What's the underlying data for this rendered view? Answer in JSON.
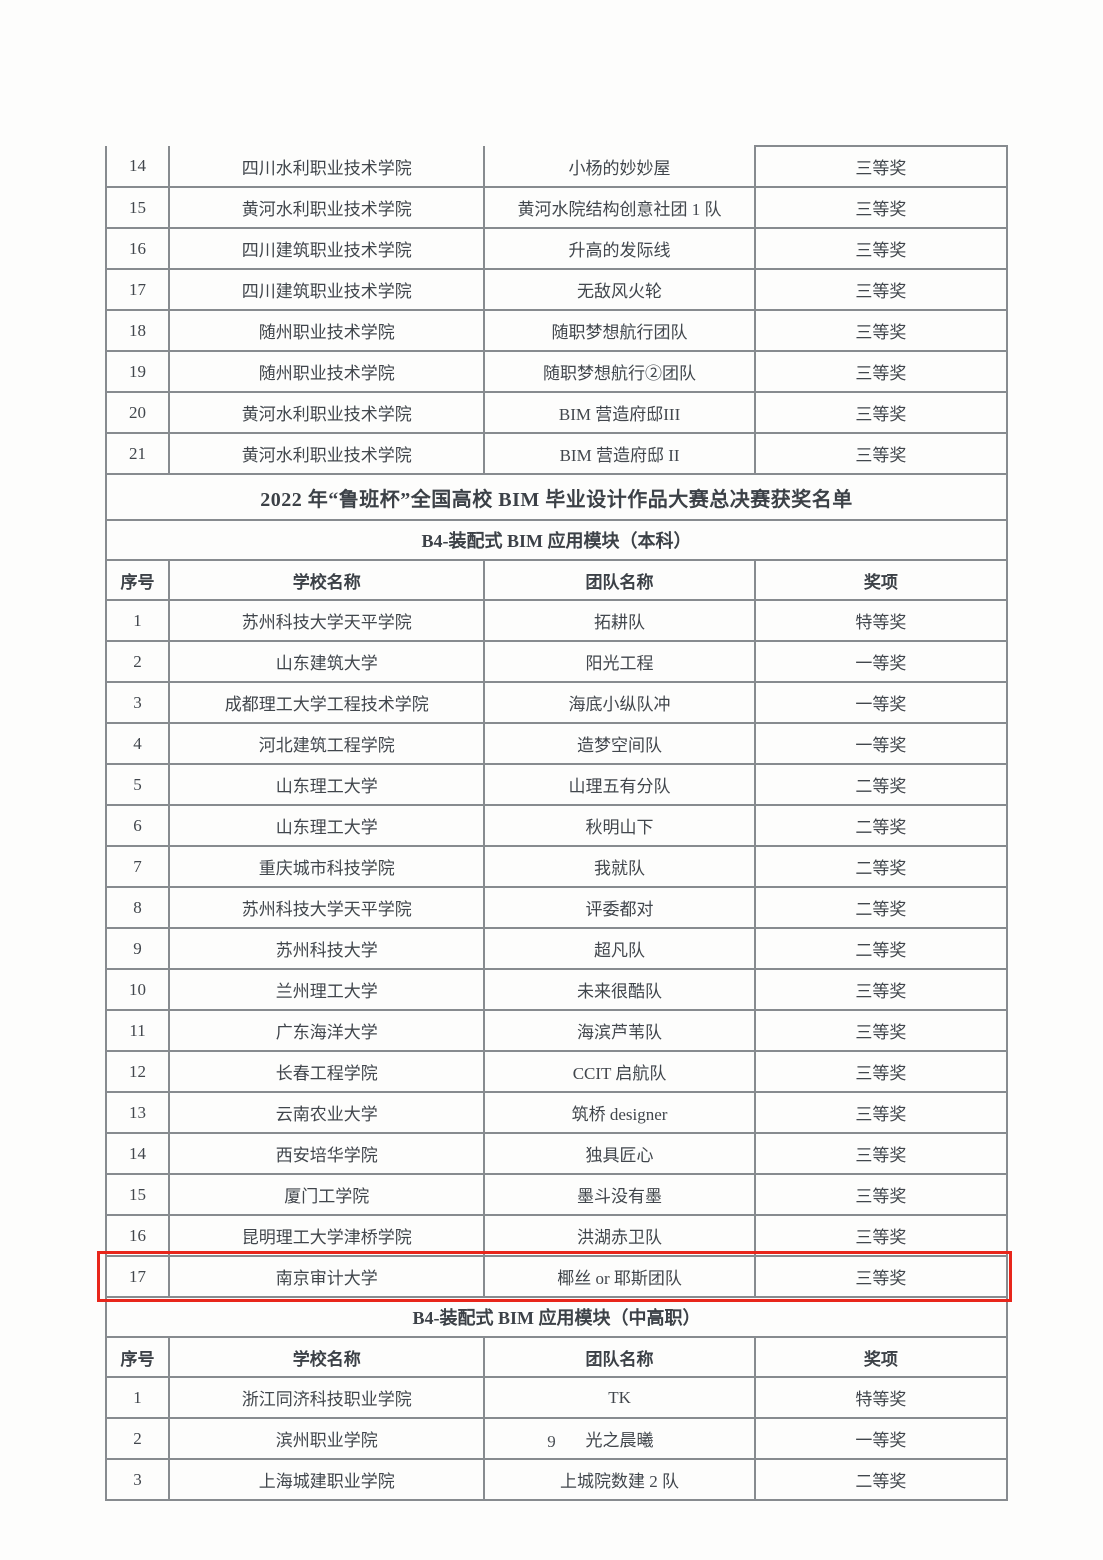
{
  "title": "2022 年“鲁班杯”全国高校 BIM 毕业设计作品大赛总决赛获奖名单",
  "page": {
    "number": "9"
  },
  "highlight": {
    "color": "#e8261b",
    "row_no": "17"
  },
  "continuation": {
    "rows": [
      {
        "no": "14",
        "school": "四川水利职业技术学院",
        "team": "小杨的妙妙屋",
        "award": "三等奖"
      },
      {
        "no": "15",
        "school": "黄河水利职业技术学院",
        "team": "黄河水院结构创意社团 1 队",
        "award": "三等奖"
      },
      {
        "no": "16",
        "school": "四川建筑职业技术学院",
        "team": "升高的发际线",
        "award": "三等奖"
      },
      {
        "no": "17",
        "school": "四川建筑职业技术学院",
        "team": "无敌风火轮",
        "award": "三等奖"
      },
      {
        "no": "18",
        "school": "随州职业技术学院",
        "team": "随职梦想航行团队",
        "award": "三等奖"
      },
      {
        "no": "19",
        "school": "随州职业技术学院",
        "team": "随职梦想航行②团队",
        "award": "三等奖"
      },
      {
        "no": "20",
        "school": "黄河水利职业技术学院",
        "team": "BIM 营造府邸III",
        "award": "三等奖"
      },
      {
        "no": "21",
        "school": "黄河水利职业技术学院",
        "team": "BIM 营造府邸 II",
        "award": "三等奖"
      }
    ]
  },
  "benke": {
    "heading": "B4-装配式 BIM 应用模块（本科）",
    "columns": [
      "序号",
      "学校名称",
      "团队名称",
      "奖项"
    ],
    "rows": [
      {
        "no": "1",
        "school": "苏州科技大学天平学院",
        "team": "拓耕队",
        "award": "特等奖"
      },
      {
        "no": "2",
        "school": "山东建筑大学",
        "team": "阳光工程",
        "award": "一等奖"
      },
      {
        "no": "3",
        "school": "成都理工大学工程技术学院",
        "team": "海底小纵队冲",
        "award": "一等奖"
      },
      {
        "no": "4",
        "school": "河北建筑工程学院",
        "team": "造梦空间队",
        "award": "一等奖"
      },
      {
        "no": "5",
        "school": "山东理工大学",
        "team": "山理五有分队",
        "award": "二等奖"
      },
      {
        "no": "6",
        "school": "山东理工大学",
        "team": "秋明山下",
        "award": "二等奖"
      },
      {
        "no": "7",
        "school": "重庆城市科技学院",
        "team": "我就队",
        "award": "二等奖"
      },
      {
        "no": "8",
        "school": "苏州科技大学天平学院",
        "team": "评委都对",
        "award": "二等奖"
      },
      {
        "no": "9",
        "school": "苏州科技大学",
        "team": "超凡队",
        "award": "二等奖"
      },
      {
        "no": "10",
        "school": "兰州理工大学",
        "team": "未来很酷队",
        "award": "三等奖"
      },
      {
        "no": "11",
        "school": "广东海洋大学",
        "team": "海滨芦苇队",
        "award": "三等奖"
      },
      {
        "no": "12",
        "school": "长春工程学院",
        "team": "CCIT 启航队",
        "award": "三等奖"
      },
      {
        "no": "13",
        "school": "云南农业大学",
        "team": "筑桥 designer",
        "award": "三等奖"
      },
      {
        "no": "14",
        "school": "西安培华学院",
        "team": "独具匠心",
        "award": "三等奖"
      },
      {
        "no": "15",
        "school": "厦门工学院",
        "team": "墨斗没有墨",
        "award": "三等奖"
      },
      {
        "no": "16",
        "school": "昆明理工大学津桥学院",
        "team": "洪湖赤卫队",
        "award": "三等奖"
      },
      {
        "no": "17",
        "school": "南京审计大学",
        "team": "椰丝 or 耶斯团队",
        "award": "三等奖",
        "highlight": true
      }
    ]
  },
  "zhonggaozhi": {
    "heading": "B4-装配式 BIM 应用模块（中高职）",
    "columns": [
      "序号",
      "学校名称",
      "团队名称",
      "奖项"
    ],
    "rows": [
      {
        "no": "1",
        "school": "浙江同济科技职业学院",
        "team": "TK",
        "award": "特等奖"
      },
      {
        "no": "2",
        "school": "滨州职业学院",
        "team": "光之晨曦",
        "award": "一等奖"
      },
      {
        "no": "3",
        "school": "上海城建职业学院",
        "team": "上城院数建 2 队",
        "award": "二等奖"
      }
    ]
  }
}
